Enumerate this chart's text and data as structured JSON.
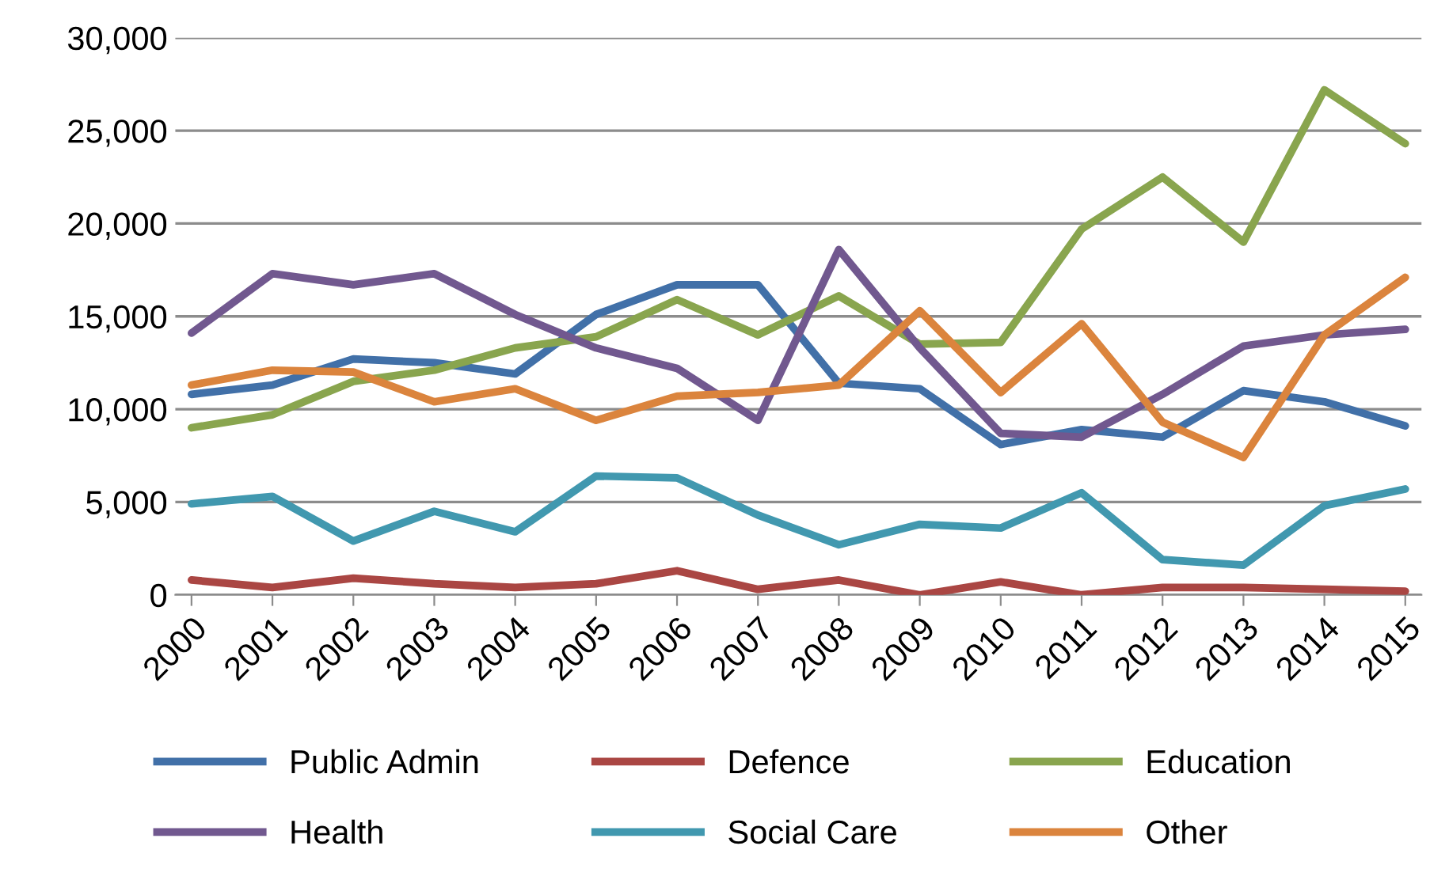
{
  "chart_data": {
    "type": "line",
    "categories": [
      "2000",
      "2001",
      "2002",
      "2003",
      "2004",
      "2005",
      "2006",
      "2007",
      "2008",
      "2009",
      "2010",
      "2011",
      "2012",
      "2013",
      "2014",
      "2015"
    ],
    "series": [
      {
        "name": "Public Admin",
        "color": "#4170a8",
        "values": [
          10800,
          11300,
          12700,
          12500,
          11900,
          15100,
          16700,
          16700,
          11400,
          11100,
          8100,
          8900,
          8500,
          11000,
          10400,
          9100
        ]
      },
      {
        "name": "Defence",
        "color": "#aa4643",
        "values": [
          800,
          400,
          900,
          600,
          400,
          600,
          1300,
          300,
          800,
          0,
          700,
          0,
          400,
          400,
          300,
          200
        ]
      },
      {
        "name": "Education",
        "color": "#89a54e",
        "values": [
          9000,
          9700,
          11500,
          12100,
          13300,
          13900,
          15900,
          14000,
          16100,
          13500,
          13600,
          19700,
          22500,
          19000,
          27200,
          24300
        ]
      },
      {
        "name": "Health",
        "color": "#71588f",
        "values": [
          14100,
          17300,
          16700,
          17300,
          15100,
          13300,
          12200,
          9400,
          18600,
          13300,
          8700,
          8500,
          10800,
          13400,
          14000,
          14300
        ]
      },
      {
        "name": "Social Care",
        "color": "#4198af",
        "values": [
          4900,
          5300,
          2900,
          4500,
          3400,
          6400,
          6300,
          4300,
          2700,
          3800,
          3600,
          5500,
          1900,
          1600,
          4800,
          5700
        ]
      },
      {
        "name": "Other",
        "color": "#db843d",
        "values": [
          11300,
          12100,
          12000,
          10400,
          11100,
          9400,
          10700,
          10900,
          11300,
          15300,
          10900,
          14600,
          9300,
          7400,
          14000,
          17100
        ]
      }
    ],
    "ylim": [
      0,
      30000
    ],
    "yticks": [
      {
        "value": 0,
        "label": "0"
      },
      {
        "value": 5000,
        "label": "5,000"
      },
      {
        "value": 10000,
        "label": "10,000"
      },
      {
        "value": 15000,
        "label": "15,000"
      },
      {
        "value": 20000,
        "label": "20,000"
      },
      {
        "value": 25000,
        "label": "25,000"
      },
      {
        "value": 30000,
        "label": "30,000"
      }
    ],
    "grid": "y",
    "legend": "bottom",
    "marker": "none",
    "line_style": "solid"
  }
}
